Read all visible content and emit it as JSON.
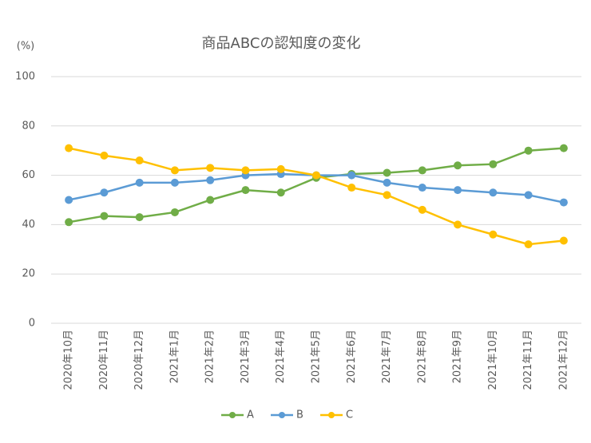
{
  "chart_data": {
    "type": "line",
    "title": "商品ABCの認知度の変化",
    "y_unit": "(%)",
    "categories": [
      "2020年10月",
      "2020年11月",
      "2020年12月",
      "2021年1月",
      "2021年2月",
      "2021年3月",
      "2021年4月",
      "2021年5月",
      "2021年6月",
      "2021年7月",
      "2021年8月",
      "2021年9月",
      "2021年10月",
      "2021年11月",
      "2021年12月"
    ],
    "series": [
      {
        "name": "A",
        "color": "#70ad47",
        "values": [
          41,
          43.5,
          43,
          45,
          50,
          54,
          53,
          59,
          60.5,
          61,
          62,
          64,
          64.5,
          70,
          71
        ]
      },
      {
        "name": "B",
        "color": "#5b9bd5",
        "values": [
          50,
          53,
          57,
          57,
          58,
          60,
          60.5,
          60,
          60,
          57,
          55,
          54,
          53,
          52,
          49
        ]
      },
      {
        "name": "C",
        "color": "#ffc000",
        "values": [
          71,
          68,
          66,
          62,
          63,
          62,
          62.5,
          60,
          55,
          52,
          46,
          40,
          36,
          32,
          33.5
        ]
      }
    ],
    "ylim": [
      0,
      100
    ],
    "yticks": [
      0,
      20,
      40,
      60,
      80,
      100
    ],
    "grid": true,
    "legend": "bottom"
  }
}
